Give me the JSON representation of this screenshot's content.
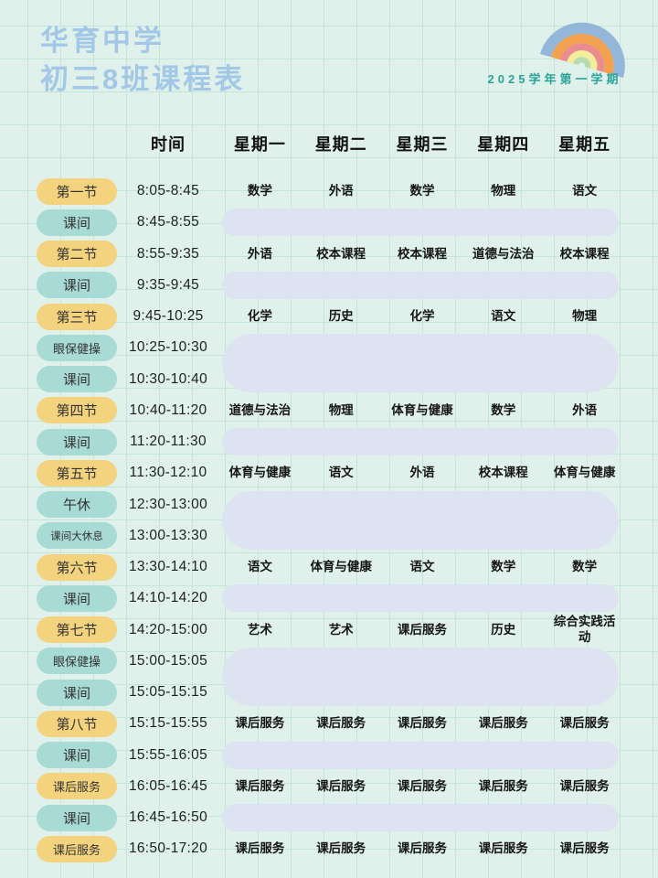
{
  "header": {
    "school_line1": "华育中学",
    "school_line2": "初三8班课程表",
    "semester": "2025学年第一学期"
  },
  "table": {
    "time_header": "时间",
    "day_headers": [
      "星期一",
      "星期二",
      "星期三",
      "星期四",
      "星期五"
    ],
    "rows": [
      {
        "label": "第一节",
        "pill": "yellow",
        "time": "8:05-8:45",
        "type": "lesson",
        "subjects": [
          "数学",
          "外语",
          "数学",
          "物理",
          "语文"
        ]
      },
      {
        "label": "课间",
        "pill": "blue",
        "time": "8:45-8:55",
        "type": "break",
        "bar_span": 1
      },
      {
        "label": "第二节",
        "pill": "yellow",
        "time": "8:55-9:35",
        "type": "lesson",
        "subjects": [
          "外语",
          "校本课程",
          "校本课程",
          "道德与法治",
          "校本课程"
        ]
      },
      {
        "label": "课间",
        "pill": "blue",
        "time": "9:35-9:45",
        "type": "break",
        "bar_span": 1
      },
      {
        "label": "第三节",
        "pill": "yellow",
        "time": "9:45-10:25",
        "type": "lesson",
        "subjects": [
          "化学",
          "历史",
          "化学",
          "语文",
          "物理"
        ]
      },
      {
        "label": "眼保健操",
        "pill": "blue",
        "time": "10:25-10:30",
        "type": "break",
        "bar_span": 2
      },
      {
        "label": "课间",
        "pill": "blue",
        "time": "10:30-10:40",
        "type": "break",
        "bar_span": 0
      },
      {
        "label": "第四节",
        "pill": "yellow",
        "time": "10:40-11:20",
        "type": "lesson",
        "subjects": [
          "道德与法治",
          "物理",
          "体育与健康",
          "数学",
          "外语"
        ]
      },
      {
        "label": "课间",
        "pill": "blue",
        "time": "11:20-11:30",
        "type": "break",
        "bar_span": 1
      },
      {
        "label": "第五节",
        "pill": "yellow",
        "time": "11:30-12:10",
        "type": "lesson",
        "subjects": [
          "体育与健康",
          "语文",
          "外语",
          "校本课程",
          "体育与健康"
        ]
      },
      {
        "label": "午休",
        "pill": "blue",
        "time": "12:30-13:00",
        "type": "break",
        "bar_span": 2
      },
      {
        "label": "课间大休息",
        "pill": "blue",
        "time": "13:00-13:30",
        "type": "break",
        "bar_span": 0
      },
      {
        "label": "第六节",
        "pill": "yellow",
        "time": "13:30-14:10",
        "type": "lesson",
        "subjects": [
          "语文",
          "体育与健康",
          "语文",
          "数学",
          "数学"
        ]
      },
      {
        "label": "课间",
        "pill": "blue",
        "time": "14:10-14:20",
        "type": "break",
        "bar_span": 1
      },
      {
        "label": "第七节",
        "pill": "yellow",
        "time": "14:20-15:00",
        "type": "lesson",
        "subjects": [
          "艺术",
          "艺术",
          "课后服务",
          "历史",
          "综合实践活动"
        ]
      },
      {
        "label": "眼保健操",
        "pill": "blue",
        "time": "15:00-15:05",
        "type": "break",
        "bar_span": 2
      },
      {
        "label": "课间",
        "pill": "blue",
        "time": "15:05-15:15",
        "type": "break",
        "bar_span": 0
      },
      {
        "label": "第八节",
        "pill": "yellow",
        "time": "15:15-15:55",
        "type": "lesson",
        "subjects": [
          "课后服务",
          "课后服务",
          "课后服务",
          "课后服务",
          "课后服务"
        ]
      },
      {
        "label": "课间",
        "pill": "blue",
        "time": "15:55-16:05",
        "type": "break",
        "bar_span": 1
      },
      {
        "label": "课后服务",
        "pill": "yellow",
        "time": "16:05-16:45",
        "type": "lesson",
        "subjects": [
          "课后服务",
          "课后服务",
          "课后服务",
          "课后服务",
          "课后服务"
        ]
      },
      {
        "label": "课间",
        "pill": "blue",
        "time": "16:45-16:50",
        "type": "break",
        "bar_span": 1
      },
      {
        "label": "课后服务",
        "pill": "yellow",
        "time": "16:50-17:20",
        "type": "lesson",
        "subjects": [
          "课后服务",
          "课后服务",
          "课后服务",
          "课后服务",
          "课后服务"
        ]
      }
    ]
  },
  "icons": {
    "rainbow": "rainbow-icon"
  },
  "colors": {
    "background": "#dff1ea",
    "gridline": "#c2e7da",
    "title_blue": "#a2c7e7",
    "pill_yellow": "#f3d37d",
    "pill_teal": "#a8dbd6",
    "break_bar_lavender": "#dee3f1",
    "semester_teal": "#2ba49b",
    "header_text": "#111111",
    "subject_text": "#151515",
    "rainbow_bands": [
      "#93b6d9",
      "#f2a14f",
      "#ea8d90",
      "#f4ed9d",
      "#b6dbad"
    ]
  }
}
